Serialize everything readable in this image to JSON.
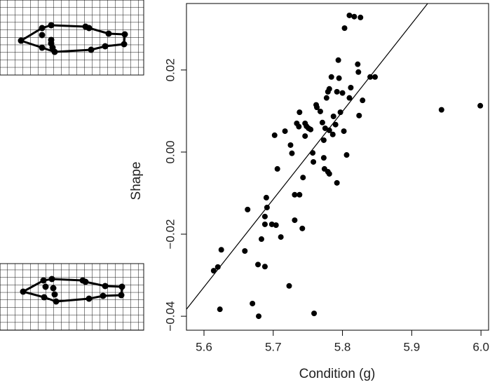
{
  "chart_data": {
    "type": "scatter",
    "x_label": "Condition (g)",
    "y_label": "Shape",
    "xlim": [
      5.5747,
      6.011
    ],
    "ylim": [
      -0.0434,
      0.0362
    ],
    "xticks": [
      5.6,
      5.7,
      5.8,
      5.9,
      {
        "value": 6,
        "label": "6.0"
      }
    ],
    "yticks": [
      {
        "value": -0.04,
        "label": "−0.04"
      },
      {
        "value": -0.02,
        "label": "−0.02"
      },
      {
        "value": 0,
        "label": "0.00"
      },
      0.02
    ],
    "color": "#000000",
    "x": [
      5.81,
      5.817,
      5.826,
      5.803,
      5.794,
      5.822,
      5.823,
      5.84,
      5.847,
      5.784,
      5.795,
      5.781,
      5.812,
      5.792,
      5.8,
      5.779,
      5.81,
      5.829,
      5.777,
      5.762,
      5.763,
      5.768,
      5.797,
      5.787,
      5.738,
      5.824,
      5.771,
      5.746,
      5.734,
      5.79,
      5.737,
      5.748,
      5.751,
      5.775,
      5.754,
      5.717,
      5.781,
      5.802,
      5.786,
      5.702,
      5.746,
      5.773,
      5.725,
      5.943,
      5.999,
      5.727,
      5.757,
      5.806,
      5.773,
      5.758,
      5.774,
      5.706,
      5.779,
      5.781,
      5.743,
      5.792,
      5.738,
      5.731,
      5.69,
      5.691,
      5.663,
      5.688,
      5.731,
      5.698,
      5.704,
      5.688,
      5.742,
      5.711,
      5.683,
      5.625,
      5.659,
      5.62,
      5.614,
      5.678,
      5.688,
      5.723,
      5.67,
      5.623,
      5.759,
      5.679
    ],
    "y": [
      0.0333,
      0.033,
      0.0328,
      0.0302,
      0.0224,
      0.0214,
      0.0195,
      0.0183,
      0.0183,
      0.0183,
      0.018,
      0.0154,
      0.0157,
      0.0147,
      0.0144,
      0.0147,
      0.0132,
      0.0126,
      0.0132,
      0.0115,
      0.0109,
      0.0099,
      0.0097,
      0.0087,
      0.0097,
      0.0089,
      0.0072,
      0.007,
      0.007,
      0.0067,
      0.0062,
      0.0063,
      0.0058,
      0.0058,
      0.0055,
      0.0051,
      0.0053,
      0.0051,
      0.0043,
      0.0041,
      0.0039,
      0.0029,
      0.0017,
      0.0103,
      0.0113,
      -0.0003,
      -0.0002,
      -0.0007,
      -0.0014,
      -0.0024,
      -0.0041,
      -0.0041,
      -0.0048,
      -0.0053,
      -0.0062,
      -0.0075,
      -0.0104,
      -0.0104,
      -0.0111,
      -0.0135,
      -0.014,
      -0.0157,
      -0.0166,
      -0.0176,
      -0.0178,
      -0.0176,
      -0.0186,
      -0.0207,
      -0.0212,
      -0.0238,
      -0.0241,
      -0.028,
      -0.0289,
      -0.0274,
      -0.0279,
      -0.0326,
      -0.0369,
      -0.0383,
      -0.0393,
      -0.04
    ],
    "fit": {
      "x": [
        5.5747,
        5.923
      ],
      "y": [
        -0.0383,
        0.0362
      ]
    }
  }
}
